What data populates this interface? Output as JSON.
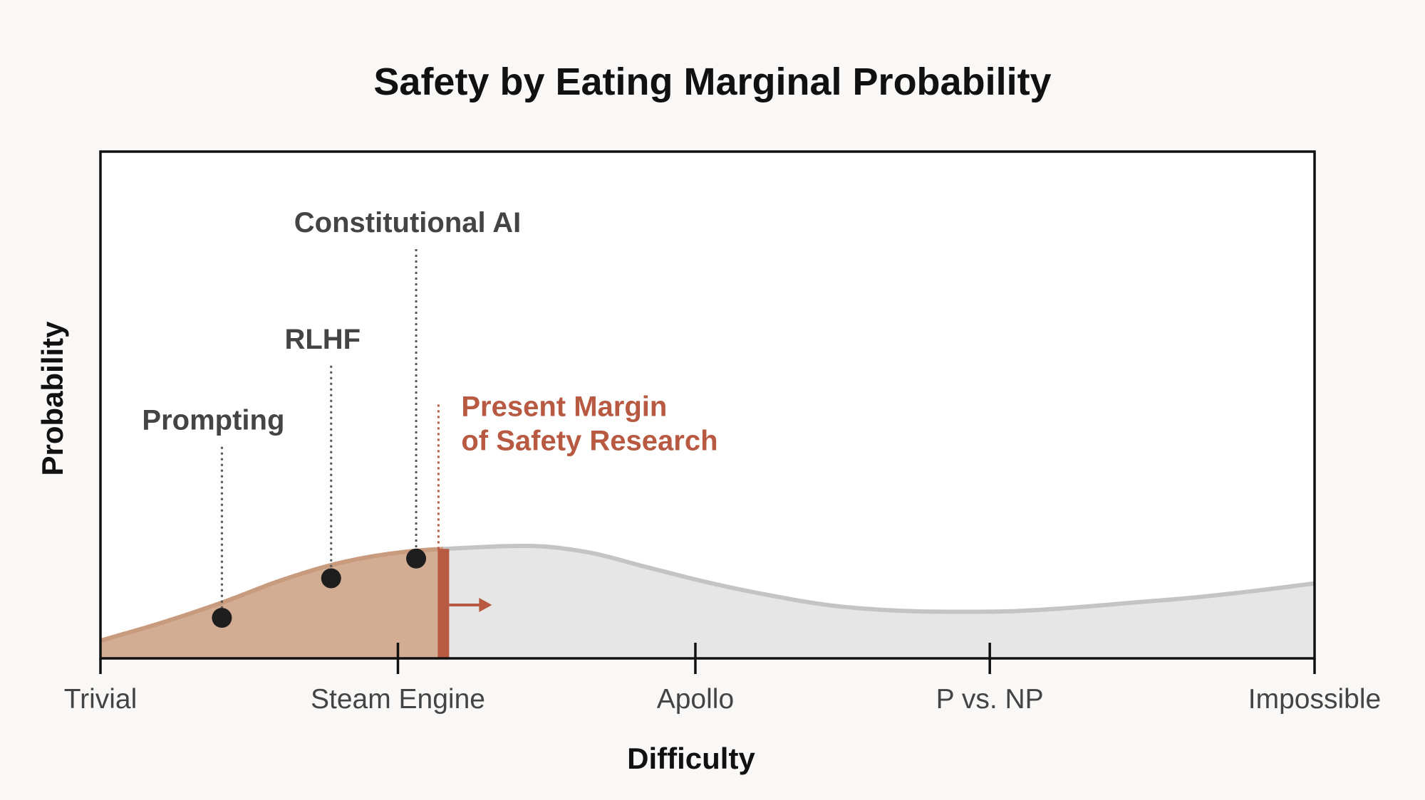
{
  "chart_data": {
    "type": "area",
    "title": "Safety by Eating Marginal Probability",
    "xlabel": "Difficulty",
    "ylabel": "Probability",
    "xlim": [
      0,
      4
    ],
    "ylim": [
      0,
      1
    ],
    "tick_labels": [
      {
        "x": 0,
        "label": "Trivial",
        "tick": false
      },
      {
        "x": 0.98,
        "label": "Steam Engine",
        "tick": true
      },
      {
        "x": 1.96,
        "label": "Apollo",
        "tick": true
      },
      {
        "x": 2.93,
        "label": "P vs. NP",
        "tick": true
      },
      {
        "x": 4,
        "label": "Impossible",
        "tick": false
      }
    ],
    "curve": {
      "x": [
        0,
        0.2,
        0.4,
        0.6,
        0.8,
        1.0,
        1.2,
        1.4,
        1.6,
        1.8,
        2.0,
        2.2,
        2.4,
        2.6,
        2.8,
        3.0,
        3.2,
        3.4,
        3.6,
        3.8,
        4.0
      ],
      "y": [
        0.035,
        0.07,
        0.11,
        0.155,
        0.19,
        0.21,
        0.218,
        0.222,
        0.21,
        0.18,
        0.15,
        0.125,
        0.105,
        0.095,
        0.092,
        0.093,
        0.1,
        0.11,
        0.12,
        0.133,
        0.148
      ]
    },
    "margin_x": 1.13,
    "shaded_region": {
      "from": 0,
      "to": 1.13,
      "color": "#d2ad93"
    },
    "unshaded_region_color": "#e6e6e6",
    "margin_color": "#b85a42",
    "points": [
      {
        "label": "Prompting",
        "x": 0.4,
        "y": 0.08,
        "label_y": 0.44
      },
      {
        "label": "RLHF",
        "x": 0.76,
        "y": 0.158,
        "label_y": 0.6
      },
      {
        "label": "Constitutional AI",
        "x": 1.04,
        "y": 0.197,
        "label_y": 0.83
      }
    ],
    "margin_label": [
      "Present Margin",
      "of Safety Research"
    ],
    "margin_label_y": 0.47,
    "grid": false,
    "legend": "none"
  }
}
